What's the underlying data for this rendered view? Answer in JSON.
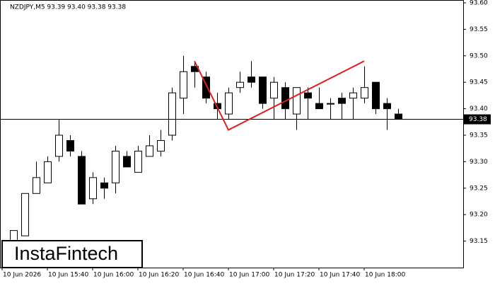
{
  "chart_data": {
    "type": "candlestick",
    "title": "NZDJPY,M5  93.39 93.40 93.38 93.38",
    "categories": [
      "10 Jun 2026",
      null,
      null,
      null,
      "10 Jun 15:40",
      null,
      null,
      null,
      "10 Jun 16:00",
      null,
      null,
      null,
      "10 Jun 16:20",
      null,
      null,
      null,
      "10 Jun 16:40",
      null,
      null,
      null,
      "10 Jun 17:00",
      null,
      null,
      null,
      "10 Jun 17:20",
      null,
      null,
      null,
      "10 Jun 17:40",
      null,
      null,
      null,
      "10 Jun 18:00",
      null,
      null,
      null
    ],
    "open": [
      null,
      93.15,
      93.16,
      93.24,
      93.26,
      93.31,
      93.34,
      93.31,
      93.23,
      93.26,
      93.26,
      93.31,
      93.28,
      93.31,
      93.32,
      93.35,
      93.42,
      93.48,
      93.46,
      93.41,
      93.39,
      93.44,
      93.46,
      93.46,
      93.42,
      93.44,
      93.39,
      93.43,
      93.41,
      93.41,
      93.42,
      93.42,
      93.42,
      93.45,
      93.41,
      93.39
    ],
    "high": [
      null,
      93.17,
      93.24,
      93.3,
      93.31,
      93.38,
      93.35,
      93.32,
      93.28,
      93.27,
      93.33,
      93.32,
      93.33,
      93.35,
      93.36,
      93.44,
      93.5,
      93.49,
      93.47,
      93.43,
      93.44,
      93.47,
      93.49,
      93.46,
      93.46,
      93.45,
      93.44,
      93.44,
      93.44,
      93.42,
      93.43,
      93.44,
      93.48,
      93.45,
      93.42,
      93.4
    ],
    "low": [
      null,
      93.15,
      93.16,
      93.24,
      93.26,
      93.3,
      93.31,
      93.22,
      93.22,
      93.23,
      93.24,
      93.29,
      93.28,
      93.31,
      93.31,
      93.34,
      93.39,
      93.44,
      93.41,
      93.38,
      93.38,
      93.43,
      93.44,
      93.4,
      93.38,
      93.38,
      93.36,
      93.38,
      93.4,
      93.38,
      93.38,
      93.38,
      93.41,
      93.39,
      93.36,
      93.38
    ],
    "close": [
      null,
      93.17,
      93.24,
      93.27,
      93.3,
      93.35,
      93.32,
      93.22,
      93.27,
      93.25,
      93.32,
      93.29,
      93.32,
      93.33,
      93.34,
      93.43,
      93.47,
      93.47,
      93.42,
      93.4,
      93.43,
      93.45,
      93.45,
      93.41,
      93.45,
      93.4,
      93.44,
      93.42,
      93.4,
      93.41,
      93.41,
      93.43,
      93.44,
      93.4,
      93.4,
      93.38
    ],
    "up_color": "#ffffff",
    "down_color": "#000000",
    "ylim": [
      93.1,
      93.6
    ],
    "yticks": [
      93.15,
      {
        "value": 93.2,
        "label": "93.20"
      },
      93.25,
      {
        "value": 93.3,
        "label": "93.30"
      },
      93.35,
      {
        "value": 93.4,
        "label": "93.40"
      },
      93.45,
      {
        "value": 93.5,
        "label": "93.50"
      },
      93.55,
      {
        "value": 93.6,
        "label": "93.60"
      }
    ],
    "current_price": 93.38,
    "pattern_line": {
      "color": "#e31c1c",
      "x": [
        17,
        20,
        32
      ],
      "values": [
        93.49,
        93.36,
        93.49
      ]
    },
    "watermark": "InstaFintech"
  }
}
